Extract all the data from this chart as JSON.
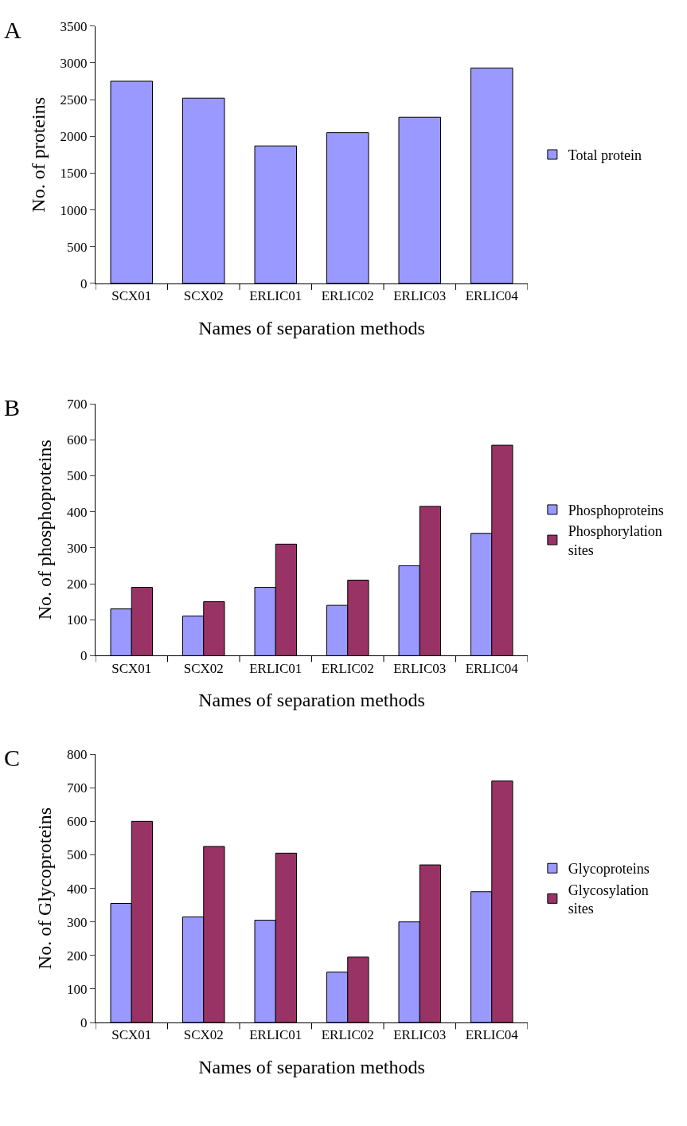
{
  "chart_data": [
    {
      "type": "bar",
      "title": "A",
      "xlabel": "Names of separation methods",
      "ylabel": "No. of proteins",
      "categories": [
        "SCX01",
        "SCX02",
        "ERLIC01",
        "ERLIC02",
        "ERLIC03",
        "ERLIC04"
      ],
      "series": [
        {
          "name": "Total protein",
          "color": "#9999ff",
          "values": [
            2750,
            2520,
            1870,
            2050,
            2260,
            2930
          ]
        }
      ],
      "ylim": [
        0,
        3500
      ],
      "yticks": [
        0,
        500,
        1000,
        1500,
        2000,
        2500,
        3000,
        3500
      ],
      "legend": "right"
    },
    {
      "type": "bar",
      "title": "B",
      "xlabel": "Names of separation methods",
      "ylabel": "No. of phosphoproteins",
      "categories": [
        "SCX01",
        "SCX02",
        "ERLIC01",
        "ERLIC02",
        "ERLIC03",
        "ERLIC04"
      ],
      "series": [
        {
          "name": "Phosphoproteins",
          "color": "#9999ff",
          "values": [
            130,
            110,
            190,
            140,
            250,
            340
          ]
        },
        {
          "name": "Phosphorylation sites",
          "color": "#993366",
          "values": [
            190,
            150,
            310,
            210,
            415,
            585
          ]
        }
      ],
      "ylim": [
        0,
        700
      ],
      "yticks": [
        0,
        100,
        200,
        300,
        400,
        500,
        600,
        700
      ],
      "legend": "right"
    },
    {
      "type": "bar",
      "title": "C",
      "xlabel": "Names of separation methods",
      "ylabel": "No. of Glycoproteins",
      "categories": [
        "SCX01",
        "SCX02",
        "ERLIC01",
        "ERLIC02",
        "ERLIC03",
        "ERLIC04"
      ],
      "series": [
        {
          "name": "Glycoproteins",
          "color": "#9999ff",
          "values": [
            355,
            315,
            305,
            150,
            300,
            390
          ]
        },
        {
          "name": "Glycosylation sites",
          "color": "#993366",
          "values": [
            600,
            525,
            505,
            195,
            470,
            720
          ]
        }
      ],
      "ylim": [
        0,
        800
      ],
      "yticks": [
        0,
        100,
        200,
        300,
        400,
        500,
        600,
        700,
        800
      ],
      "legend": "right"
    }
  ]
}
